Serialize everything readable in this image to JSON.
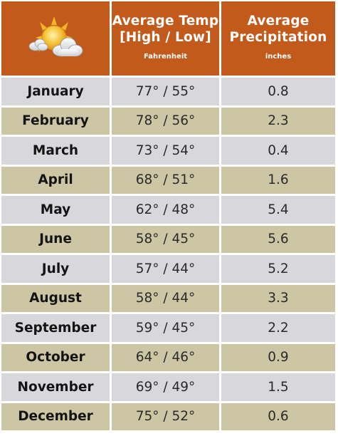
{
  "header": {
    "icon": "sun-behind-clouds-icon",
    "temp_title_line1": "Average Temp",
    "temp_title_line2": "[High / Low]",
    "temp_unit": "Fahrenheit",
    "precip_title_line1": "Average",
    "precip_title_line2": "Precipitation",
    "precip_unit": "inches"
  },
  "colors": {
    "header_bg": "#c25a1c",
    "row_gray": "#d8d8dc",
    "row_tan": "#cdc6a5"
  },
  "rows": [
    {
      "month": "January",
      "temp": "77° / 55°",
      "precip": "0.8"
    },
    {
      "month": "February",
      "temp": "78° / 56°",
      "precip": "2.3"
    },
    {
      "month": "March",
      "temp": "73° / 54°",
      "precip": "0.4"
    },
    {
      "month": "April",
      "temp": "68° / 51°",
      "precip": "1.6"
    },
    {
      "month": "May",
      "temp": "62° / 48°",
      "precip": "5.4"
    },
    {
      "month": "June",
      "temp": "58° / 45°",
      "precip": "5.6"
    },
    {
      "month": "July",
      "temp": "57° / 44°",
      "precip": "5.2"
    },
    {
      "month": "August",
      "temp": "58° / 44°",
      "precip": "3.3"
    },
    {
      "month": "September",
      "temp": "59° / 45°",
      "precip": "2.2"
    },
    {
      "month": "October",
      "temp": "64° / 46°",
      "precip": "0.9"
    },
    {
      "month": "November",
      "temp": "69° / 49°",
      "precip": "1.5"
    },
    {
      "month": "December",
      "temp": "75° / 52°",
      "precip": "0.6"
    }
  ]
}
